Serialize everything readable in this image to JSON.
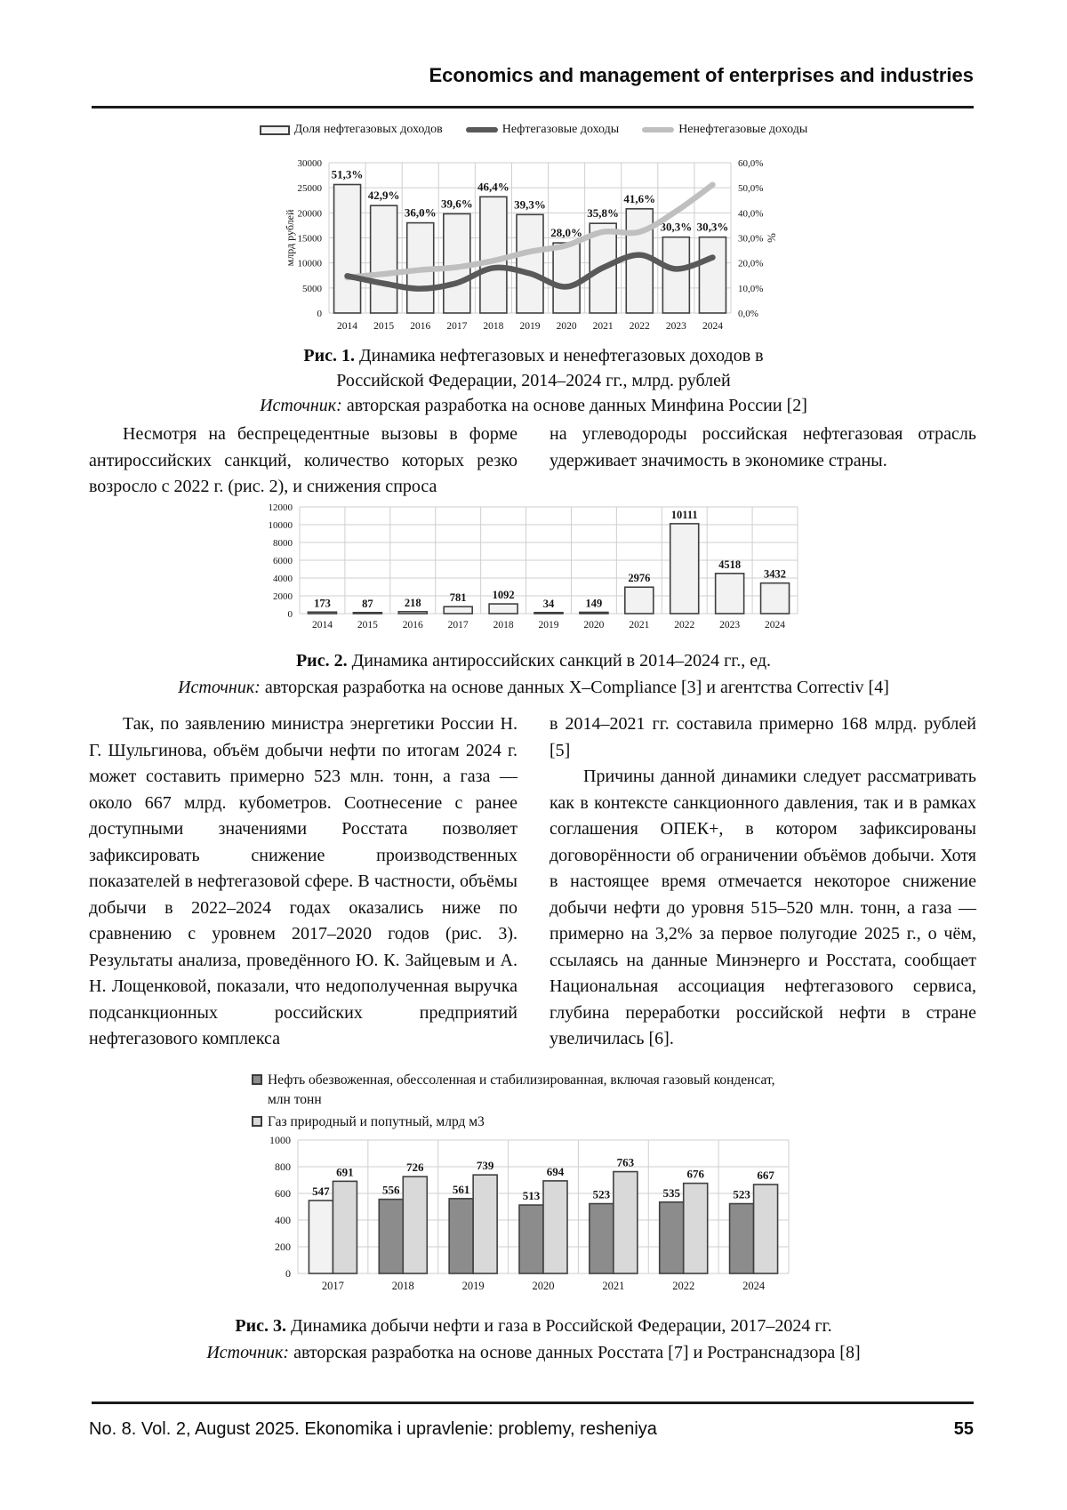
{
  "header": {
    "title": "Economics and management of enterprises and industries"
  },
  "figure1": {
    "caption": {
      "fig": "Рис. 1.",
      "line1": "Динамика нефтегазовых и ненефтегазовых доходов в",
      "line2": "Российской Федерации, 2014–2024 гг., млрд. рублей",
      "source_label": "Источник:",
      "source": "авторская разработка на основе данных Минфина России [2]"
    }
  },
  "figure2": {
    "caption": {
      "fig": "Рис. 2.",
      "line1": "Динамика антироссийских санкций в 2014–2024 гг., ед.",
      "source_label": "Источник:",
      "source": "авторская разработка на основе данных X–Compliance [3] и агентства Correctiv [4]"
    }
  },
  "figure3": {
    "caption": {
      "fig": "Рис. 3.",
      "line1": "Динамика добычи нефти и газа в Российской Федерации, 2017–2024 гг.",
      "source_label": "Источник:",
      "source": "авторская разработка на основе данных Росстата [7] и Ространснадзора [8]"
    }
  },
  "body1": {
    "left": "Несмотря на беспрецедентные вызовы в форме антироссийских санкций, количество которых резко возросло с 2022 г. (рис. 2), и снижения спроса",
    "right": "на углеводороды российская нефтегазовая отрасль удерживает значимость в экономике страны."
  },
  "body2": {
    "left": "Так, по заявлению министра энергетики России Н. Г. Шульгинова, объём добычи нефти по итогам 2024 г. может составить примерно 523 млн. тонн, а газа — около 667 млрд. кубометров. Соотнесение с ранее доступными значениями Росстата позволяет зафиксировать снижение производственных показателей в нефтегазовой сфере. В частности, объёмы добычи в 2022–2024 годах оказались ниже по сравнению с уровнем 2017–2020 годов (рис. 3). Результаты анализа, проведённого Ю. К. Зайцевым и А. Н. Лощенковой, показали, что недополученная выручка подсанкционных российских предприятий нефтегазового комплекса",
    "right_p1": "в 2014–2021 гг. составила примерно 168 млрд. рублей [5]",
    "right_p2": "Причины данной динамики следует рассматривать как в контексте санкционного давления, так и в рамках соглашения ОПЕК+, в котором зафиксированы договорённости об ограничении объёмов добычи. Хотя в настоящее время отмечается некоторое снижение добычи нефти до уровня 515–520 млн. тонн, а газа — примерно на 3,2% за первое полугодие 2025 г., о чём, ссылаясь на данные Минэнерго и Росстата, сообщает Национальная ассоциация нефтегазового сервиса, глубина переработки российской нефти в стране увеличилась [6]."
  },
  "footer": {
    "issue": "No. 8. Vol. 2, August 2025. Ekonomika i upravlenie: problemy, resheniya",
    "page": "55"
  },
  "chart_data": [
    {
      "id": "fig1",
      "type": "bar",
      "subtype": "combo-bar-lines",
      "title": "Рис. 1. Динамика нефтегазовых и ненефтегазовых доходов в Российской Федерации, 2014–2024 гг., млрд. рублей",
      "categories": [
        "2014",
        "2015",
        "2016",
        "2017",
        "2018",
        "2019",
        "2020",
        "2021",
        "2022",
        "2023",
        "2024"
      ],
      "bar_series": {
        "name": "Доля нефтегазовых доходов",
        "axis": "right",
        "values_percent": [
          51.3,
          42.9,
          36.0,
          39.6,
          46.4,
          39.3,
          28.0,
          35.8,
          41.6,
          30.3,
          30.3
        ],
        "labels": [
          "51,3%",
          "42,9%",
          "36,0%",
          "39,6%",
          "46,4%",
          "39,3%",
          "28,0%",
          "35,8%",
          "41,6%",
          "30,3%",
          "30,3%"
        ],
        "fill": "#f2f2f2",
        "stroke": "#404040"
      },
      "line_series": [
        {
          "name": "Нефтегазовые доходы",
          "color": "#595959",
          "values": [
            7400,
            5900,
            4850,
            6000,
            9000,
            7900,
            5250,
            9050,
            11600,
            8800,
            11100
          ]
        },
        {
          "name": "Ненефтегазовые доходы",
          "color": "#bfbfbf",
          "values": [
            7100,
            7800,
            8600,
            9150,
            10450,
            12250,
            13500,
            16200,
            16200,
            20300,
            25600
          ]
        }
      ],
      "left_axis": {
        "label": "млрд рублей",
        "min": 0,
        "max": 30000,
        "step": 5000,
        "ticks": [
          "0",
          "5000",
          "10000",
          "15000",
          "20000",
          "25000",
          "30000"
        ]
      },
      "right_axis": {
        "label": "%",
        "min": 0,
        "max": 60,
        "step": 10,
        "ticks": [
          "0,0%",
          "10,0%",
          "20,0%",
          "30,0%",
          "40,0%",
          "50,0%",
          "60,0%"
        ]
      },
      "grid": true,
      "legend_position": "top"
    },
    {
      "id": "fig2",
      "type": "bar",
      "title": "Рис. 2. Динамика антироссийских санкций в 2014–2024 гг., ед.",
      "categories": [
        "2014",
        "2015",
        "2016",
        "2017",
        "2018",
        "2019",
        "2020",
        "2021",
        "2022",
        "2023",
        "2024"
      ],
      "values": [
        173,
        87,
        218,
        781,
        1092,
        34,
        149,
        2976,
        10111,
        4518,
        3432
      ],
      "labels": [
        "173",
        "87",
        "218",
        "781",
        "1092",
        "34",
        "149",
        "2976",
        "10111",
        "4518",
        "3432"
      ],
      "y_axis": {
        "min": 0,
        "max": 12000,
        "step": 2000,
        "ticks": [
          "0",
          "2000",
          "4000",
          "6000",
          "8000",
          "10000",
          "12000"
        ]
      },
      "bar": {
        "fill": "#f2f2f2",
        "stroke": "#404040"
      },
      "grid": true,
      "legend_position": "none"
    },
    {
      "id": "fig3",
      "type": "bar",
      "subtype": "grouped-bar",
      "title": "Рис. 3. Динамика добычи нефти и газа в Российской Федерации, 2017–2024 гг.",
      "categories": [
        "2017",
        "2018",
        "2019",
        "2020",
        "2021",
        "2022",
        "2024"
      ],
      "series": [
        {
          "name": "Нефть обезвоженная, обессоленная и стабилизированная, включая газовый конденсат, млн тонн",
          "fill": "#8c8c8c",
          "first_bar_fill": "#f2f2f2",
          "stroke": "#404040",
          "values": [
            547,
            556,
            561,
            513,
            523,
            535,
            523
          ]
        },
        {
          "name": "Газ природный и попутный, млрд м3",
          "fill": "#d9d9d9",
          "stroke": "#404040",
          "values": [
            691,
            726,
            739,
            694,
            763,
            676,
            667
          ]
        }
      ],
      "y_axis": {
        "min": 0,
        "max": 1000,
        "step": 200,
        "ticks": [
          "0",
          "200",
          "400",
          "600",
          "800",
          "1000"
        ]
      },
      "grid": true,
      "legend_position": "top"
    }
  ]
}
